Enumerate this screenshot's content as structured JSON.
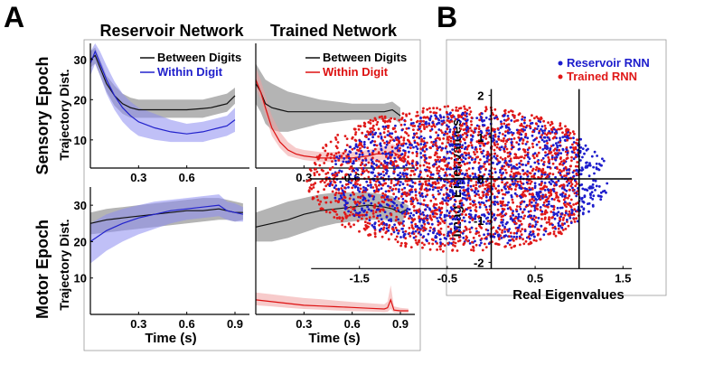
{
  "panel_labels": {
    "a": "A",
    "b": "B"
  },
  "chart_data": [
    {
      "type": "line",
      "panel": "A",
      "row": "Sensory Epoch",
      "column": "Reservoir Network",
      "title": "Reservoir Network",
      "row_label": "Sensory Epoch",
      "ylabel": "Trajectory Dist.",
      "xlabel": "",
      "xlim": [
        0,
        0.99
      ],
      "ylim": [
        3,
        34
      ],
      "xticks": [
        "0.3",
        "0.6"
      ],
      "yticks": [
        "10",
        "20",
        "30"
      ],
      "legend": [
        "Between Digits",
        "Within Digit"
      ],
      "series": [
        {
          "name": "Between Digits",
          "color": "#111111",
          "band_color": "#777777",
          "x": [
            0.0,
            0.03,
            0.06,
            0.1,
            0.15,
            0.2,
            0.25,
            0.3,
            0.4,
            0.5,
            0.6,
            0.7,
            0.75,
            0.8,
            0.85,
            0.9
          ],
          "y": [
            30,
            31,
            28,
            24,
            21,
            19,
            18,
            17.5,
            17.5,
            17.5,
            17.5,
            17.8,
            18,
            18.5,
            19,
            21
          ],
          "lower": [
            28,
            29,
            26,
            22,
            18.5,
            16.5,
            15.5,
            15.5,
            15.5,
            15.5,
            15.5,
            15.5,
            16,
            16.5,
            17,
            19
          ],
          "upper": [
            32,
            33,
            30,
            26,
            23.5,
            21.5,
            20.5,
            20,
            20,
            20,
            20,
            20,
            20.5,
            21,
            21.5,
            23
          ]
        },
        {
          "name": "Within Digit",
          "color": "#2222cc",
          "band_color": "#8c8cf0",
          "x": [
            0.0,
            0.03,
            0.06,
            0.1,
            0.15,
            0.2,
            0.25,
            0.3,
            0.4,
            0.5,
            0.6,
            0.7,
            0.75,
            0.8,
            0.85,
            0.9
          ],
          "y": [
            29,
            32,
            29,
            25,
            21,
            18,
            16,
            14.5,
            13,
            12,
            11.5,
            12,
            12.5,
            13,
            13.5,
            15
          ],
          "lower": [
            26,
            29,
            26,
            21.5,
            17.5,
            14.5,
            12.5,
            11,
            10,
            9.5,
            9.5,
            9.5,
            10,
            10.5,
            11,
            12
          ],
          "upper": [
            32,
            34,
            32,
            28.5,
            24.5,
            21.5,
            19.5,
            18,
            16.5,
            15,
            14,
            14.5,
            15,
            15.5,
            16,
            18
          ]
        }
      ]
    },
    {
      "type": "line",
      "panel": "A",
      "row": "Sensory Epoch",
      "column": "Trained Network",
      "title": "Trained Network",
      "xlabel": "",
      "ylabel": "",
      "xlim": [
        0,
        0.99
      ],
      "ylim": [
        3,
        34
      ],
      "xticks": [
        "0.3",
        "0.6"
      ],
      "yticks": [],
      "legend": [
        "Between Digits",
        "Within Digit"
      ],
      "series": [
        {
          "name": "Between Digits",
          "color": "#111111",
          "band_color": "#777777",
          "x": [
            0.0,
            0.03,
            0.06,
            0.1,
            0.15,
            0.2,
            0.3,
            0.4,
            0.5,
            0.6,
            0.7,
            0.8,
            0.85,
            0.9
          ],
          "y": [
            24,
            22,
            19,
            18,
            17.5,
            17,
            17,
            17,
            17,
            17,
            17,
            17,
            17.5,
            16
          ],
          "lower": [
            19,
            17,
            14,
            12.5,
            12,
            12,
            13,
            14,
            14.5,
            15,
            15,
            15,
            15.5,
            14
          ],
          "upper": [
            29,
            27,
            25,
            24,
            23,
            22,
            21,
            20,
            19.5,
            19,
            19,
            19,
            19.5,
            18
          ]
        },
        {
          "name": "Within Digit",
          "color": "#dd1111",
          "band_color": "#f0a0a0",
          "x": [
            0.0,
            0.03,
            0.06,
            0.1,
            0.15,
            0.2,
            0.25,
            0.3,
            0.4,
            0.5,
            0.6,
            0.7,
            0.75,
            0.8,
            0.85,
            0.9
          ],
          "y": [
            25,
            22,
            18,
            13,
            9.5,
            7.5,
            6.5,
            6,
            5.5,
            5.5,
            5.5,
            6,
            6.5,
            6.5,
            7,
            6
          ],
          "lower": [
            23,
            20,
            16,
            11,
            8,
            6,
            5.5,
            5,
            4.5,
            4.5,
            4.5,
            4.5,
            5,
            5,
            5.5,
            5
          ],
          "upper": [
            28,
            25,
            21,
            16,
            12,
            9.5,
            8,
            7.5,
            7,
            7,
            7,
            7.5,
            8,
            8.5,
            9,
            8
          ]
        }
      ]
    },
    {
      "type": "line",
      "panel": "A",
      "row": "Motor Epoch",
      "column": "Reservoir Network",
      "title": "",
      "row_label": "Motor Epoch",
      "ylabel": "Trajectory Dist.",
      "xlabel": "Time (s)",
      "xlim": [
        0,
        0.99
      ],
      "ylim": [
        0,
        35
      ],
      "xticks": [
        "0.3",
        "0.6",
        "0.9"
      ],
      "yticks": [
        "10",
        "20",
        "30"
      ],
      "legend": [],
      "series": [
        {
          "name": "Between Digits",
          "color": "#111111",
          "band_color": "#777777",
          "x": [
            0.0,
            0.1,
            0.2,
            0.3,
            0.4,
            0.5,
            0.6,
            0.7,
            0.8,
            0.85,
            0.9,
            0.95
          ],
          "y": [
            25,
            26,
            26.5,
            27,
            27.5,
            28,
            28.5,
            28.5,
            29,
            28.5,
            28,
            28
          ],
          "lower": [
            22,
            22.5,
            23,
            23.5,
            24,
            24.5,
            25,
            25.5,
            26,
            26,
            25.5,
            26
          ],
          "upper": [
            28,
            29,
            29.5,
            30,
            30.5,
            31,
            31.5,
            32,
            32,
            31.5,
            31,
            30.5
          ]
        },
        {
          "name": "Within Digit",
          "color": "#2222cc",
          "band_color": "#8c8cf0",
          "x": [
            0.0,
            0.1,
            0.2,
            0.3,
            0.4,
            0.5,
            0.6,
            0.7,
            0.8,
            0.85,
            0.9,
            0.95
          ],
          "y": [
            20,
            23,
            25,
            26.5,
            27.5,
            28.5,
            29,
            29.5,
            30,
            28.5,
            28,
            27.5
          ],
          "lower": [
            14,
            17.5,
            20,
            22,
            23.5,
            25,
            26,
            26.5,
            27,
            26,
            25.5,
            25.5
          ],
          "upper": [
            25,
            27.5,
            29,
            30,
            31,
            31.5,
            32,
            32.5,
            33,
            31,
            30.5,
            29.5
          ]
        }
      ]
    },
    {
      "type": "line",
      "panel": "A",
      "row": "Motor Epoch",
      "column": "Trained Network",
      "title": "",
      "xlabel": "Time (s)",
      "ylabel": "",
      "xlim": [
        0,
        0.99
      ],
      "ylim": [
        0,
        35
      ],
      "xticks": [
        "0.3",
        "0.6",
        "0.9"
      ],
      "yticks": [],
      "legend": [],
      "series": [
        {
          "name": "Between Digits",
          "color": "#111111",
          "band_color": "#777777",
          "x": [
            0.0,
            0.1,
            0.2,
            0.3,
            0.4,
            0.5,
            0.6,
            0.7,
            0.8,
            0.85,
            0.9,
            0.95
          ],
          "y": [
            24,
            25,
            26,
            27.5,
            28.5,
            29,
            29.5,
            30,
            29.5,
            29,
            28,
            29
          ],
          "lower": [
            20,
            20,
            21,
            22.5,
            24,
            25,
            25.5,
            26,
            26,
            25.5,
            25,
            28
          ],
          "upper": [
            28,
            29.5,
            31,
            32,
            33,
            33.5,
            33.5,
            33.5,
            33,
            32.5,
            31,
            30
          ]
        },
        {
          "name": "Within Digit",
          "color": "#dd1111",
          "band_color": "#f0a0a0",
          "x": [
            0.0,
            0.1,
            0.2,
            0.3,
            0.4,
            0.5,
            0.6,
            0.7,
            0.8,
            0.82,
            0.84,
            0.86,
            0.9,
            0.95
          ],
          "y": [
            4,
            3.5,
            3,
            2.5,
            2.3,
            2.1,
            1.9,
            1.7,
            1.5,
            1.8,
            4,
            1.2,
            1,
            1
          ],
          "lower": [
            2.5,
            2.2,
            1.8,
            1.5,
            1.3,
            1.1,
            0.9,
            0.8,
            0.6,
            0.7,
            1.5,
            0.5,
            0.4,
            0.4
          ],
          "upper": [
            6,
            5.5,
            5,
            4.5,
            4.2,
            3.8,
            3.4,
            3.1,
            2.8,
            3.5,
            8,
            2.2,
            1.8,
            1.6
          ]
        }
      ]
    },
    {
      "type": "scatter",
      "panel": "B",
      "xlabel": "Real Eigenvalues",
      "ylabel": "Imag. Eigenvalues",
      "xlim": [
        -2.05,
        1.6
      ],
      "ylim": [
        -2.15,
        2.15
      ],
      "xticks": [
        "-1.5",
        "-0.5",
        "0.5",
        "1.5"
      ],
      "yticks": [
        "2",
        "1",
        "0",
        "-1",
        "-2"
      ],
      "reference_line_x": 1,
      "legend": [
        "Reservoir RNN",
        "Trained RNN"
      ],
      "series": [
        {
          "name": "Reservoir RNN",
          "color": "#1c1ccc",
          "distribution": "uniform disk",
          "center": [
            -0.25,
            0
          ],
          "radius": 1.6
        },
        {
          "name": "Trained RNN",
          "color": "#e01818",
          "distribution": "uniform disk clipped at real part 1.0",
          "center": [
            -0.35,
            0
          ],
          "radius": 1.75,
          "real_max": 1.0
        }
      ]
    }
  ]
}
